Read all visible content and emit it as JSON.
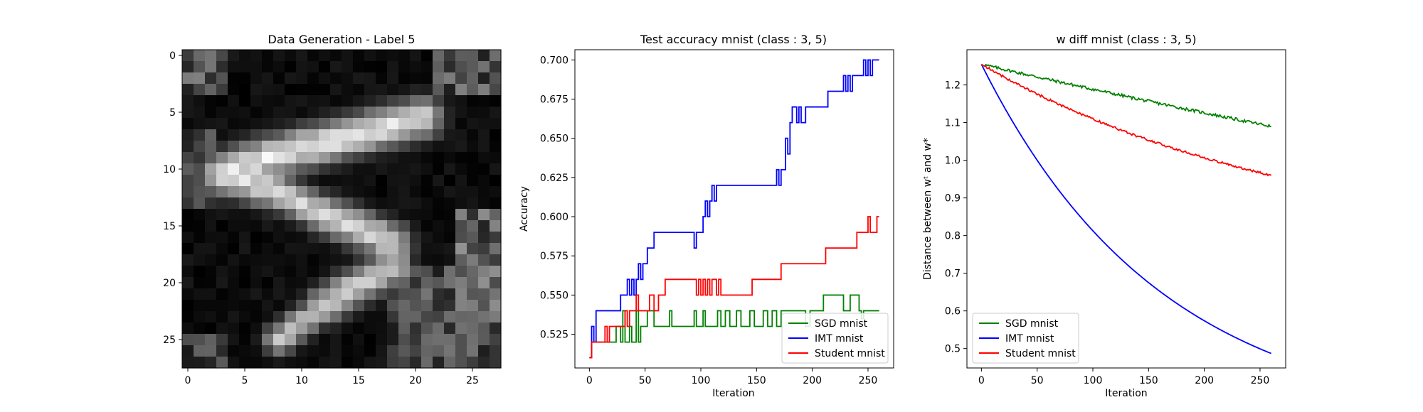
{
  "chart_data": [
    {
      "type": "heatmap",
      "title": "Data Generation - Label 5",
      "colormap": "gray",
      "rows": 28,
      "cols": 28,
      "xticks": [
        0,
        5,
        10,
        15,
        20,
        25
      ],
      "yticks": [
        0,
        5,
        10,
        15,
        20,
        25
      ],
      "strokes": [
        {
          "from": [
            5.5,
            20.5
          ],
          "to": [
            9.0,
            7.0
          ],
          "intensity": 0.98,
          "width": 1.3
        },
        {
          "from": [
            9.0,
            7.0
          ],
          "to": [
            10.5,
            3.0
          ],
          "intensity": 0.95,
          "width": 1.4
        },
        {
          "from": [
            10.5,
            3.0
          ],
          "to": [
            12.0,
            8.0
          ],
          "intensity": 0.93,
          "width": 1.2
        },
        {
          "from": [
            12.0,
            8.0
          ],
          "to": [
            14.0,
            12.0
          ],
          "intensity": 0.9,
          "width": 1.1
        },
        {
          "from": [
            14.0,
            12.0
          ],
          "to": [
            16.5,
            18.0
          ],
          "intensity": 0.92,
          "width": 1.2
        },
        {
          "from": [
            18.5,
            18.0
          ],
          "to": [
            22.0,
            12.0
          ],
          "intensity": 0.88,
          "width": 1.2
        },
        {
          "from": [
            22.0,
            12.0
          ],
          "to": [
            25.0,
            8.0
          ],
          "intensity": 0.8,
          "width": 1.0
        }
      ],
      "noise_regions": [
        {
          "r0": 0,
          "r1": 3,
          "c0": 0,
          "c1": 3,
          "level": 0.45
        },
        {
          "r0": 0,
          "r1": 3,
          "c0": 22,
          "c1": 27,
          "level": 0.45
        },
        {
          "r0": 7,
          "r1": 13,
          "c0": 0,
          "c1": 2,
          "level": 0.35
        },
        {
          "r0": 14,
          "r1": 24,
          "c0": 24,
          "c1": 27,
          "level": 0.5
        },
        {
          "r0": 19,
          "r1": 27,
          "c0": 18,
          "c1": 27,
          "level": 0.4
        },
        {
          "r0": 25,
          "r1": 27,
          "c0": 0,
          "c1": 3,
          "level": 0.35
        }
      ]
    },
    {
      "type": "line",
      "title": "Test accuracy mnist (class : 3, 5)",
      "xlabel": "Iteration",
      "ylabel": "Accuracy",
      "xlim": [
        -13,
        273
      ],
      "ylim": [
        0.5035,
        0.7065
      ],
      "xticks": [
        0,
        50,
        100,
        150,
        200,
        250
      ],
      "yticks": [
        0.525,
        0.55,
        0.575,
        0.6,
        0.625,
        0.65,
        0.675,
        0.7
      ],
      "ytick_labels": [
        "0.525",
        "0.550",
        "0.575",
        "0.600",
        "0.625",
        "0.650",
        "0.675",
        "0.700"
      ],
      "legend_position": "lower-right",
      "series": [
        {
          "name": "SGD mnist",
          "color": "#008000",
          "points": [
            [
              0,
              0.51
            ],
            [
              2,
              0.52
            ],
            [
              20,
              0.52
            ],
            [
              24,
              0.53
            ],
            [
              28,
              0.52
            ],
            [
              30,
              0.54
            ],
            [
              32,
              0.52
            ],
            [
              36,
              0.53
            ],
            [
              38,
              0.52
            ],
            [
              42,
              0.54
            ],
            [
              44,
              0.52
            ],
            [
              46,
              0.53
            ],
            [
              50,
              0.53
            ],
            [
              52,
              0.54
            ],
            [
              58,
              0.53
            ],
            [
              60,
              0.53
            ],
            [
              62,
              0.53
            ],
            [
              65,
              0.53
            ],
            [
              68,
              0.53
            ],
            [
              72,
              0.54
            ],
            [
              74,
              0.53
            ],
            [
              80,
              0.53
            ],
            [
              90,
              0.53
            ],
            [
              94,
              0.54
            ],
            [
              96,
              0.53
            ],
            [
              102,
              0.54
            ],
            [
              104,
              0.53
            ],
            [
              112,
              0.53
            ],
            [
              115,
              0.54
            ],
            [
              118,
              0.53
            ],
            [
              122,
              0.54
            ],
            [
              126,
              0.53
            ],
            [
              132,
              0.54
            ],
            [
              136,
              0.53
            ],
            [
              140,
              0.53
            ],
            [
              144,
              0.54
            ],
            [
              148,
              0.53
            ],
            [
              152,
              0.53
            ],
            [
              156,
              0.54
            ],
            [
              160,
              0.53
            ],
            [
              164,
              0.54
            ],
            [
              168,
              0.53
            ],
            [
              172,
              0.54
            ],
            [
              176,
              0.54
            ],
            [
              190,
              0.54
            ],
            [
              194,
              0.53
            ],
            [
              198,
              0.54
            ],
            [
              203,
              0.54
            ],
            [
              210,
              0.55
            ],
            [
              224,
              0.55
            ],
            [
              228,
              0.54
            ],
            [
              234,
              0.55
            ],
            [
              240,
              0.55
            ],
            [
              242,
              0.54
            ],
            [
              244,
              0.535
            ],
            [
              246,
              0.54
            ],
            [
              250,
              0.54
            ],
            [
              260,
              0.54
            ]
          ]
        },
        {
          "name": "IMT mnist",
          "color": "#0000ff",
          "points": [
            [
              0,
              0.51
            ],
            [
              2,
              0.53
            ],
            [
              4,
              0.52
            ],
            [
              6,
              0.54
            ],
            [
              10,
              0.54
            ],
            [
              26,
              0.54
            ],
            [
              28,
              0.55
            ],
            [
              32,
              0.55
            ],
            [
              34,
              0.56
            ],
            [
              36,
              0.55
            ],
            [
              38,
              0.56
            ],
            [
              40,
              0.55
            ],
            [
              42,
              0.56
            ],
            [
              44,
              0.57
            ],
            [
              46,
              0.56
            ],
            [
              48,
              0.57
            ],
            [
              50,
              0.57
            ],
            [
              52,
              0.58
            ],
            [
              56,
              0.58
            ],
            [
              58,
              0.59
            ],
            [
              60,
              0.59
            ],
            [
              62,
              0.59
            ],
            [
              64,
              0.59
            ],
            [
              92,
              0.59
            ],
            [
              94,
              0.58
            ],
            [
              96,
              0.59
            ],
            [
              100,
              0.59
            ],
            [
              102,
              0.6
            ],
            [
              104,
              0.61
            ],
            [
              106,
              0.6
            ],
            [
              108,
              0.61
            ],
            [
              110,
              0.62
            ],
            [
              112,
              0.61
            ],
            [
              114,
              0.62
            ],
            [
              116,
              0.62
            ],
            [
              166,
              0.62
            ],
            [
              168,
              0.63
            ],
            [
              170,
              0.62
            ],
            [
              172,
              0.63
            ],
            [
              174,
              0.63
            ],
            [
              176,
              0.65
            ],
            [
              178,
              0.64
            ],
            [
              180,
              0.66
            ],
            [
              182,
              0.67
            ],
            [
              184,
              0.67
            ],
            [
              186,
              0.66
            ],
            [
              188,
              0.67
            ],
            [
              190,
              0.66
            ],
            [
              194,
              0.67
            ],
            [
              196,
              0.67
            ],
            [
              200,
              0.67
            ],
            [
              212,
              0.67
            ],
            [
              214,
              0.68
            ],
            [
              216,
              0.68
            ],
            [
              218,
              0.68
            ],
            [
              220,
              0.68
            ],
            [
              226,
              0.68
            ],
            [
              228,
              0.69
            ],
            [
              230,
              0.68
            ],
            [
              232,
              0.69
            ],
            [
              234,
              0.68
            ],
            [
              236,
              0.69
            ],
            [
              238,
              0.69
            ],
            [
              240,
              0.69
            ],
            [
              244,
              0.69
            ],
            [
              246,
              0.7
            ],
            [
              248,
              0.69
            ],
            [
              250,
              0.7
            ],
            [
              252,
              0.69
            ],
            [
              254,
              0.7
            ],
            [
              260,
              0.7
            ]
          ]
        },
        {
          "name": "Student mnist",
          "color": "#ff0000",
          "points": [
            [
              0,
              0.51
            ],
            [
              2,
              0.52
            ],
            [
              12,
              0.52
            ],
            [
              14,
              0.53
            ],
            [
              16,
              0.52
            ],
            [
              18,
              0.53
            ],
            [
              20,
              0.53
            ],
            [
              30,
              0.53
            ],
            [
              32,
              0.54
            ],
            [
              34,
              0.53
            ],
            [
              36,
              0.54
            ],
            [
              40,
              0.54
            ],
            [
              42,
              0.55
            ],
            [
              44,
              0.54
            ],
            [
              50,
              0.54
            ],
            [
              54,
              0.55
            ],
            [
              58,
              0.54
            ],
            [
              62,
              0.55
            ],
            [
              66,
              0.55
            ],
            [
              68,
              0.56
            ],
            [
              72,
              0.56
            ],
            [
              94,
              0.56
            ],
            [
              96,
              0.55
            ],
            [
              98,
              0.56
            ],
            [
              100,
              0.55
            ],
            [
              102,
              0.56
            ],
            [
              104,
              0.55
            ],
            [
              106,
              0.56
            ],
            [
              108,
              0.55
            ],
            [
              110,
              0.56
            ],
            [
              112,
              0.56
            ],
            [
              114,
              0.55
            ],
            [
              116,
              0.56
            ],
            [
              118,
              0.55
            ],
            [
              120,
              0.55
            ],
            [
              145,
              0.55
            ],
            [
              146,
              0.56
            ],
            [
              170,
              0.56
            ],
            [
              172,
              0.57
            ],
            [
              210,
              0.57
            ],
            [
              212,
              0.58
            ],
            [
              238,
              0.58
            ],
            [
              240,
              0.59
            ],
            [
              248,
              0.59
            ],
            [
              250,
              0.6
            ],
            [
              252,
              0.59
            ],
            [
              256,
              0.59
            ],
            [
              258,
              0.6
            ],
            [
              260,
              0.6
            ]
          ]
        }
      ]
    },
    {
      "type": "line",
      "title": "w diff mnist (class : 3, 5)",
      "xlabel": "Iteration",
      "ylabel": "Distance between wᵗ and w*",
      "xlim": [
        -13,
        273
      ],
      "ylim": [
        0.4485,
        1.2935
      ],
      "xticks": [
        0,
        50,
        100,
        150,
        200,
        250
      ],
      "yticks": [
        0.5,
        0.6,
        0.7,
        0.8,
        0.9,
        1.0,
        1.1,
        1.2
      ],
      "ytick_labels": [
        "0.5",
        "0.6",
        "0.7",
        "0.8",
        "0.9",
        "1.0",
        "1.1",
        "1.2"
      ],
      "legend_position": "lower-left",
      "series": [
        {
          "name": "SGD mnist",
          "color": "#008000",
          "model": {
            "start": 1.255,
            "end": 1.09,
            "curve": 0.15,
            "noise": 0.004,
            "steps": 260
          }
        },
        {
          "name": "IMT mnist",
          "color": "#0000ff",
          "model": {
            "start": 1.255,
            "end": 0.487,
            "curve": 1.6,
            "noise": 0,
            "steps": 260
          }
        },
        {
          "name": "Student mnist",
          "color": "#ff0000",
          "model": {
            "start": 1.255,
            "end": 0.96,
            "curve": 0.9,
            "noise": 0.003,
            "steps": 260
          }
        }
      ]
    }
  ]
}
